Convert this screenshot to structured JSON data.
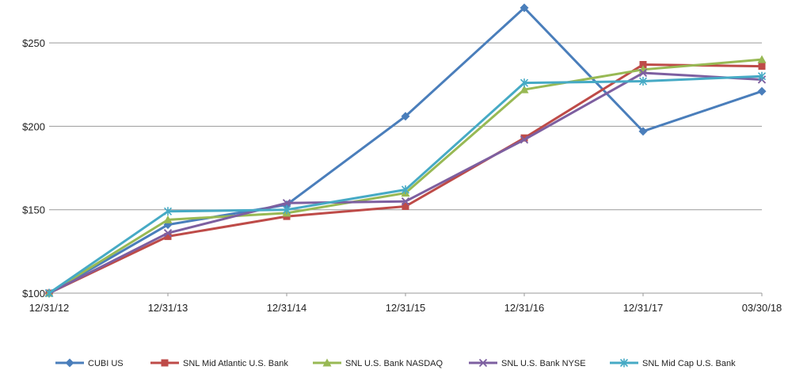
{
  "chart_data": {
    "type": "line",
    "title": "",
    "xlabel": "",
    "ylabel": "",
    "x": [
      "12/31/12",
      "12/31/13",
      "12/31/14",
      "12/31/15",
      "12/31/16",
      "12/31/17",
      "03/30/18"
    ],
    "ylim": [
      100,
      270
    ],
    "yticks": [
      100,
      150,
      200,
      250
    ],
    "ytick_labels": [
      "$100",
      "$150",
      "$200",
      "$250"
    ],
    "grid": "horizontal",
    "legend_position": "bottom",
    "series": [
      {
        "name": "CUBI US",
        "color": "#4a7ebb",
        "marker": "diamond",
        "values": [
          100,
          141,
          153,
          206,
          271,
          197,
          221
        ]
      },
      {
        "name": "SNL Mid Atlantic U.S. Bank",
        "color": "#be4b48",
        "marker": "square",
        "values": [
          100,
          134,
          146,
          152,
          193,
          237,
          236
        ]
      },
      {
        "name": "SNL U.S. Bank NASDAQ",
        "color": "#98b954",
        "marker": "triangle",
        "values": [
          100,
          144,
          148,
          160,
          222,
          234,
          240
        ]
      },
      {
        "name": "SNL U.S. Bank NYSE",
        "color": "#7d5fa0",
        "marker": "x",
        "values": [
          100,
          136,
          154,
          155,
          192,
          232,
          228
        ]
      },
      {
        "name": "SNL Mid Cap U.S. Bank",
        "color": "#46aac5",
        "marker": "star",
        "values": [
          100,
          149,
          150,
          162,
          226,
          227,
          230
        ]
      }
    ]
  }
}
